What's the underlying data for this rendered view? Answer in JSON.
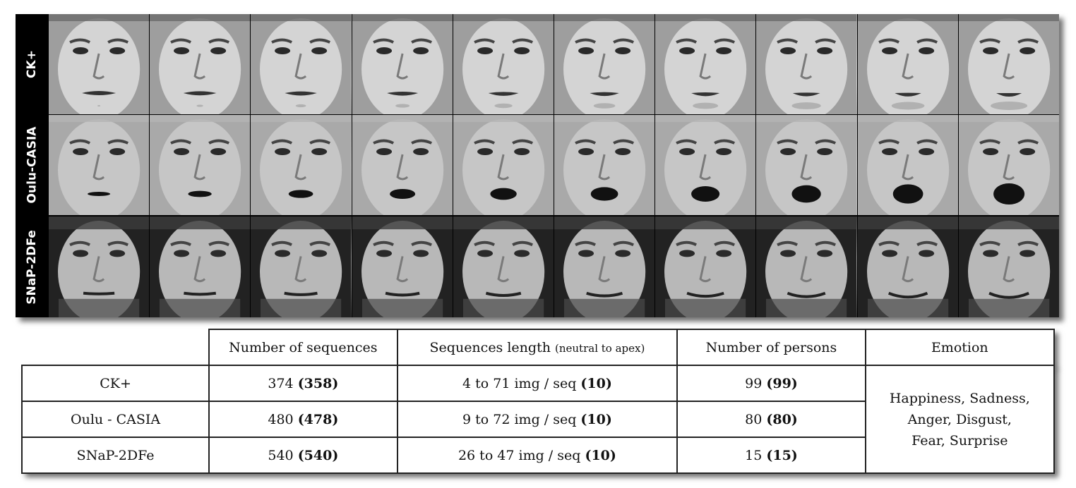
{
  "image_grid": {
    "rows": [
      {
        "label": "CK+",
        "frames": 10,
        "expression": "pout"
      },
      {
        "label": "Oulu-CASIA",
        "frames": 10,
        "expression": "surprise"
      },
      {
        "label": "SNaP-2DFe",
        "frames": 10,
        "expression": "smile"
      }
    ]
  },
  "table": {
    "headers": {
      "sequences": "Number of sequences",
      "length_main": "Sequences length",
      "length_note": "(neutral to apex)",
      "persons": "Number of persons",
      "emotion": "Emotion"
    },
    "rows": [
      {
        "dataset": "CK+",
        "seq": "374",
        "seq_b": "(358)",
        "len": "4 to 71 img / seq",
        "len_b": "(10)",
        "persons": "99",
        "persons_b": "(99)"
      },
      {
        "dataset": "Oulu - CASIA",
        "seq": "480",
        "seq_b": "(478)",
        "len": "9 to 72 img / seq",
        "len_b": "(10)",
        "persons": "80",
        "persons_b": "(80)"
      },
      {
        "dataset": "SNaP-2DFe",
        "seq": "540",
        "seq_b": "(540)",
        "len": "26 to 47 img / seq",
        "len_b": "(10)",
        "persons": "15",
        "persons_b": "(15)"
      }
    ],
    "emotion_lines": [
      "Happiness, Sadness,",
      "Anger, Disgust,",
      "Fear, Surprise"
    ]
  }
}
